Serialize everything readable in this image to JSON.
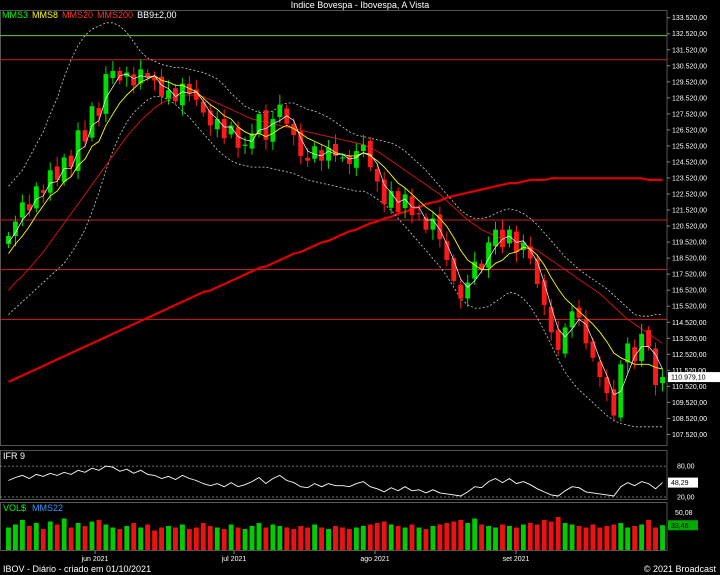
{
  "title": "Indice Bovespa - Ibovespa, A Vista",
  "legend": [
    {
      "label": "MMS3",
      "color": "#00ff00"
    },
    {
      "label": "MMS8",
      "color": "#ffff00"
    },
    {
      "label": "MMS20",
      "color": "#ff3333"
    },
    {
      "label": "MMS200",
      "color": "#ff3333"
    },
    {
      "label": "BB9±2,00",
      "color": "#ffffff"
    }
  ],
  "footer": {
    "left": "IBOV - Diário - criado em 01/10/2021",
    "right": "© 2021 Broadcast"
  },
  "chart_data": [
    {
      "name": "price",
      "type": "candlestick",
      "y_ticks": [
        "133.520,00",
        "132.520,00",
        "131.520,00",
        "130.520,00",
        "129.520,00",
        "128.520,00",
        "127.520,00",
        "126.520,00",
        "125.520,00",
        "124.520,00",
        "123.520,00",
        "122.520,00",
        "121.520,00",
        "120.520,00",
        "119.520,00",
        "118.520,00",
        "117.520,00",
        "116.520,00",
        "115.520,00",
        "114.520,00",
        "113.520,00",
        "112.520,00",
        "111.520,00",
        "110.520,00",
        "109.520,00",
        "108.520,00",
        "107.520,00"
      ],
      "ylim": [
        106800,
        134000
      ],
      "last_value_label": "110.979,10",
      "x_ticks": [
        "jun 2021",
        "jul 2021",
        "ago 2021",
        "set 2021"
      ],
      "horizontal_levels": [
        {
          "value": 132400,
          "color": "#66cc33"
        },
        {
          "value": 130900,
          "color": "#cc2222"
        },
        {
          "value": 120900,
          "color": "#cc2222"
        },
        {
          "value": 117800,
          "color": "#cc2222"
        },
        {
          "value": 114700,
          "color": "#cc2222"
        }
      ],
      "closes": [
        119900,
        120800,
        122000,
        121500,
        123000,
        122600,
        124000,
        123400,
        124800,
        124200,
        126500,
        125800,
        128000,
        127400,
        130000,
        130200,
        129600,
        130100,
        129300,
        130300,
        129800,
        129600,
        128600,
        129000,
        128300,
        129400,
        128800,
        128400,
        127600,
        126800,
        127200,
        126000,
        126800,
        125400,
        125600,
        126300,
        127500,
        125900,
        127200,
        128100,
        126900,
        126200,
        124900,
        124600,
        125500,
        124600,
        125400,
        124900,
        124800,
        124400,
        125200,
        125600,
        124200,
        123300,
        121900,
        122700,
        121400,
        122500,
        121200,
        121300,
        120300,
        121000,
        119700,
        118400,
        117100,
        116000,
        117000,
        118300,
        117800,
        119500,
        120300,
        119200,
        120300,
        118900,
        119500,
        118500,
        116900,
        115600,
        113900,
        112800,
        114200,
        115200,
        114800,
        113200,
        112300,
        111100,
        110100,
        108700,
        111900,
        113200,
        112100,
        113800,
        113000,
        110600,
        111100
      ],
      "ma3": [
        119500,
        120100,
        120900,
        121400,
        122200,
        122400,
        123200,
        123300,
        124100,
        124100,
        125200,
        125500,
        126800,
        127100,
        128500,
        129200,
        129900,
        130000,
        129700,
        129900,
        129800,
        129900,
        129300,
        129100,
        128600,
        128900,
        128800,
        128900,
        128300,
        127600,
        127200,
        126700,
        126700,
        126100,
        125900,
        125800,
        126500,
        126600,
        126900,
        127100,
        127400,
        127100,
        126000,
        125200,
        125000,
        124900,
        125200,
        125000,
        125000,
        124700,
        124800,
        125100,
        125000,
        124400,
        123100,
        122600,
        122000,
        122200,
        121700,
        121700,
        120900,
        120900,
        120300,
        119400,
        118400,
        117200,
        116700,
        117100,
        117700,
        118500,
        119200,
        119700,
        119900,
        119500,
        119600,
        119000,
        118300,
        117000,
        115500,
        114100,
        113600,
        114100,
        114700,
        114400,
        113400,
        112200,
        111200,
        110000,
        110200,
        111300,
        112400,
        113000,
        113000,
        112500,
        111600
      ],
      "ma8": [
        118800,
        119400,
        119900,
        120500,
        121200,
        121800,
        122400,
        122700,
        123300,
        123600,
        124300,
        124700,
        125500,
        125800,
        126800,
        127500,
        128200,
        128700,
        129100,
        129500,
        129700,
        129900,
        129600,
        129500,
        129300,
        129300,
        129100,
        128900,
        128500,
        128100,
        127800,
        127400,
        127200,
        126700,
        126400,
        126200,
        126300,
        126100,
        126300,
        126600,
        126800,
        126600,
        126300,
        126000,
        125800,
        125600,
        125400,
        125100,
        125000,
        124900,
        124900,
        125100,
        124900,
        124600,
        124200,
        123700,
        123200,
        122900,
        122500,
        122100,
        121700,
        121400,
        121000,
        120500,
        119800,
        119000,
        118400,
        118100,
        117800,
        117800,
        118200,
        118400,
        118800,
        118900,
        119200,
        119100,
        118700,
        118100,
        117300,
        116600,
        116000,
        115600,
        115200,
        114800,
        114400,
        113900,
        113300,
        112600,
        112300,
        112100,
        111900,
        111900,
        111900,
        111700,
        111600
      ],
      "ma20": [
        116500,
        117000,
        117400,
        117900,
        118400,
        118900,
        119500,
        120100,
        120700,
        121300,
        121900,
        122500,
        123100,
        123700,
        124300,
        124900,
        125500,
        126100,
        126600,
        127100,
        127500,
        127900,
        128200,
        128400,
        128600,
        128700,
        128700,
        128700,
        128600,
        128400,
        128200,
        128000,
        127800,
        127600,
        127400,
        127200,
        127100,
        127000,
        126900,
        126800,
        126700,
        126600,
        126500,
        126400,
        126300,
        126200,
        126100,
        126000,
        125900,
        125800,
        125700,
        125600,
        125400,
        125200,
        124900,
        124600,
        124300,
        124000,
        123700,
        123400,
        123100,
        122800,
        122500,
        122100,
        121700,
        121300,
        120900,
        120600,
        120300,
        120100,
        119900,
        119700,
        119600,
        119500,
        119400,
        119200,
        119000,
        118700,
        118400,
        118100,
        117800,
        117500,
        117200,
        116900,
        116600,
        116300,
        115900,
        115500,
        115100,
        114700,
        114400,
        114100,
        113800,
        113500,
        113200
      ],
      "ma200": [
        110800,
        111000,
        111200,
        111400,
        111600,
        111800,
        112000,
        112200,
        112400,
        112600,
        112800,
        113000,
        113200,
        113400,
        113600,
        113800,
        114000,
        114200,
        114400,
        114600,
        114800,
        115000,
        115200,
        115400,
        115600,
        115800,
        116000,
        116200,
        116400,
        116500,
        116700,
        116900,
        117100,
        117300,
        117500,
        117700,
        117900,
        118000,
        118200,
        118400,
        118600,
        118800,
        118900,
        119100,
        119300,
        119500,
        119600,
        119800,
        120000,
        120200,
        120300,
        120500,
        120700,
        120800,
        121000,
        121100,
        121300,
        121400,
        121600,
        121700,
        121900,
        122000,
        122100,
        122300,
        122400,
        122500,
        122600,
        122700,
        122800,
        122900,
        123000,
        123100,
        123200,
        123200,
        123300,
        123400,
        123400,
        123400,
        123500,
        123500,
        123500,
        123500,
        123500,
        123500,
        123500,
        123500,
        123500,
        123500,
        123500,
        123500,
        123500,
        123500,
        123400,
        123400,
        123400
      ],
      "bb_upper": [
        123000,
        123500,
        124000,
        124800,
        125600,
        126400,
        127500,
        128500,
        129800,
        130900,
        131800,
        132400,
        132800,
        133000,
        133200,
        133200,
        133000,
        132600,
        132000,
        131400,
        131000,
        130800,
        130600,
        130500,
        130400,
        130400,
        130300,
        130200,
        130100,
        129900,
        129700,
        129300,
        128800,
        128400,
        128000,
        127800,
        127600,
        127600,
        127700,
        128000,
        128200,
        128200,
        128000,
        127800,
        127700,
        127500,
        127300,
        127000,
        126700,
        126400,
        126200,
        126100,
        126000,
        125900,
        125800,
        125700,
        125500,
        125200,
        124800,
        124400,
        124000,
        123500,
        123000,
        122500,
        122000,
        121500,
        121200,
        121000,
        121000,
        121100,
        121300,
        121500,
        121600,
        121500,
        121300,
        121000,
        120600,
        120100,
        119600,
        119100,
        118600,
        118200,
        117800,
        117500,
        117200,
        116900,
        116600,
        116200,
        115800,
        115400,
        115000,
        114900,
        114900,
        115000,
        115000
      ],
      "bb_lower": [
        115000,
        115400,
        115800,
        116200,
        116600,
        117000,
        117400,
        117800,
        118200,
        118800,
        119500,
        120300,
        121400,
        122600,
        124000,
        125200,
        126200,
        127000,
        127600,
        128000,
        128400,
        128600,
        128600,
        128400,
        128100,
        127700,
        127300,
        126800,
        126300,
        125800,
        125300,
        124900,
        124600,
        124400,
        124300,
        124200,
        124200,
        124200,
        124100,
        124000,
        123900,
        123800,
        123600,
        123400,
        123300,
        123200,
        123100,
        123000,
        122900,
        122800,
        122700,
        122700,
        122500,
        122200,
        121900,
        121500,
        121000,
        120500,
        120000,
        119500,
        119000,
        118500,
        118000,
        117400,
        116700,
        116000,
        115600,
        115400,
        115400,
        115500,
        115800,
        116100,
        116400,
        116300,
        116000,
        115500,
        114800,
        114000,
        113100,
        112200,
        111400,
        110800,
        110300,
        109900,
        109500,
        109100,
        108700,
        108400,
        108200,
        108100,
        108000,
        108000,
        108000,
        108000,
        108000
      ]
    },
    {
      "name": "IFR 9",
      "type": "line",
      "title": "IFR 9",
      "ylim": [
        20,
        90
      ],
      "y_ticks": [
        "80,00",
        "20,00"
      ],
      "reference_lines": [
        80,
        20
      ],
      "last_value_label": "48,29",
      "values": [
        52,
        58,
        62,
        56,
        64,
        60,
        66,
        62,
        68,
        64,
        72,
        68,
        76,
        72,
        80,
        78,
        70,
        74,
        66,
        72,
        64,
        62,
        56,
        60,
        54,
        62,
        56,
        52,
        46,
        42,
        46,
        40,
        48,
        40,
        44,
        50,
        58,
        46,
        56,
        62,
        52,
        48,
        40,
        38,
        46,
        40,
        46,
        42,
        42,
        40,
        46,
        50,
        40,
        36,
        30,
        38,
        32,
        40,
        32,
        34,
        28,
        34,
        28,
        26,
        24,
        22,
        30,
        40,
        38,
        50,
        56,
        48,
        56,
        46,
        50,
        44,
        36,
        30,
        24,
        22,
        32,
        40,
        38,
        30,
        28,
        26,
        24,
        22,
        40,
        48,
        42,
        50,
        46,
        36,
        48
      ]
    },
    {
      "name": "VOL$",
      "type": "bar",
      "title": "VOL$",
      "legend": [
        "VOL$",
        "MMS22"
      ],
      "ylim": [
        0,
        60
      ],
      "y_ticks": [
        "50,08"
      ],
      "last_value_label": "33,46",
      "values": [
        30,
        34,
        40,
        32,
        36,
        28,
        38,
        34,
        42,
        30,
        36,
        32,
        38,
        40,
        34,
        30,
        28,
        32,
        36,
        30,
        34,
        26,
        30,
        32,
        30,
        34,
        28,
        30,
        36,
        32,
        30,
        28,
        34,
        30,
        28,
        32,
        36,
        30,
        34,
        32,
        30,
        28,
        32,
        30,
        34,
        30,
        28,
        32,
        30,
        28,
        30,
        32,
        34,
        36,
        38,
        34,
        32,
        30,
        34,
        30,
        28,
        32,
        34,
        36,
        38,
        40,
        36,
        42,
        34,
        32,
        30,
        34,
        32,
        30,
        34,
        36,
        34,
        40,
        38,
        44,
        36,
        34,
        32,
        30,
        34,
        30,
        32,
        34,
        36,
        30,
        32,
        34,
        40,
        30,
        33
      ]
    }
  ]
}
